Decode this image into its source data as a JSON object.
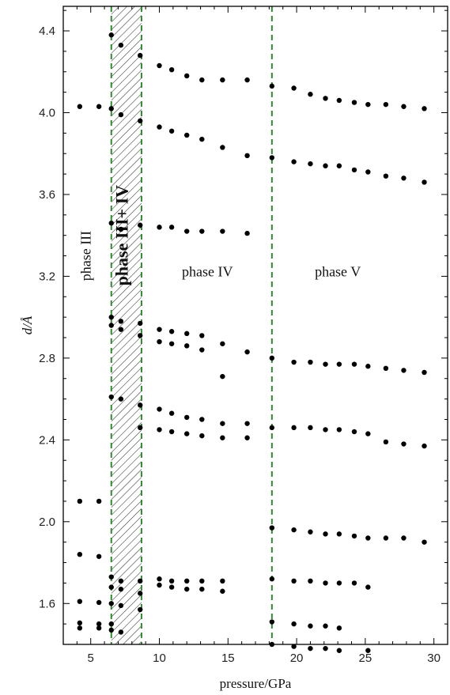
{
  "chart_data": {
    "type": "scatter",
    "title": "",
    "xlabel": "pressure/GPa",
    "ylabel": "d/Å",
    "xlim": [
      3,
      31
    ],
    "ylim": [
      1.4,
      4.52
    ],
    "x_ticks": [
      5,
      10,
      15,
      20,
      25,
      30
    ],
    "y_ticks": [
      1.6,
      2.0,
      2.4,
      2.8,
      3.2,
      3.6,
      4.0,
      4.4
    ],
    "x_tick_labels": [
      "5",
      "10",
      "15",
      "20",
      "25",
      "30"
    ],
    "y_tick_labels": [
      "1.6",
      "2.0",
      "2.4",
      "2.8",
      "3.2",
      "3.6",
      "4.0",
      "4.4"
    ],
    "grid": false,
    "colors": {
      "points": "#000000",
      "boundary": "#2e8b2e",
      "hatch": "#333333"
    },
    "regions": [
      {
        "label": "phase III",
        "x": 5.0,
        "y": 3.3,
        "rotated": true,
        "bold": false
      },
      {
        "label": "phase III+ IV",
        "x": 7.7,
        "y": 3.4,
        "rotated": true,
        "bold": true
      },
      {
        "label": "phase IV",
        "x": 13.5,
        "y": 3.2,
        "rotated": false,
        "bold": false
      },
      {
        "label": "phase V",
        "x": 23.0,
        "y": 3.2,
        "rotated": false,
        "bold": false
      }
    ],
    "boundaries": [
      6.5,
      8.7,
      18.2
    ],
    "hatched_region": [
      6.5,
      8.7
    ],
    "points": [
      [
        4.2,
        4.03
      ],
      [
        5.6,
        4.03
      ],
      [
        4.2,
        2.1
      ],
      [
        5.6,
        2.1
      ],
      [
        4.2,
        1.84
      ],
      [
        5.6,
        1.83
      ],
      [
        4.2,
        1.61
      ],
      [
        5.6,
        1.605
      ],
      [
        4.2,
        1.505
      ],
      [
        5.6,
        1.5
      ],
      [
        4.2,
        1.48
      ],
      [
        5.6,
        1.48
      ],
      [
        6.5,
        4.38
      ],
      [
        6.5,
        4.02
      ],
      [
        6.5,
        3.46
      ],
      [
        6.5,
        3.0
      ],
      [
        6.5,
        2.96
      ],
      [
        6.5,
        2.61
      ],
      [
        6.5,
        1.73
      ],
      [
        6.5,
        1.68
      ],
      [
        6.5,
        1.6
      ],
      [
        6.5,
        1.5
      ],
      [
        6.5,
        1.47
      ],
      [
        7.2,
        4.33
      ],
      [
        7.2,
        3.99
      ],
      [
        7.2,
        3.43
      ],
      [
        7.2,
        2.98
      ],
      [
        7.2,
        2.94
      ],
      [
        7.2,
        2.6
      ],
      [
        7.2,
        1.71
      ],
      [
        7.2,
        1.67
      ],
      [
        7.2,
        1.59
      ],
      [
        7.2,
        1.46
      ],
      [
        8.6,
        4.28
      ],
      [
        8.6,
        3.96
      ],
      [
        8.6,
        3.45
      ],
      [
        8.6,
        2.97
      ],
      [
        8.6,
        2.91
      ],
      [
        8.6,
        2.57
      ],
      [
        8.6,
        2.46
      ],
      [
        8.6,
        1.71
      ],
      [
        8.6,
        1.65
      ],
      [
        8.6,
        1.57
      ],
      [
        10.0,
        4.23
      ],
      [
        10.0,
        3.93
      ],
      [
        10.0,
        3.44
      ],
      [
        10.0,
        2.94
      ],
      [
        10.0,
        2.88
      ],
      [
        10.0,
        2.55
      ],
      [
        10.0,
        2.45
      ],
      [
        10.0,
        1.72
      ],
      [
        10.0,
        1.69
      ],
      [
        10.9,
        4.21
      ],
      [
        10.9,
        3.91
      ],
      [
        10.9,
        3.44
      ],
      [
        10.9,
        2.93
      ],
      [
        10.9,
        2.87
      ],
      [
        10.9,
        2.53
      ],
      [
        10.9,
        2.44
      ],
      [
        10.9,
        1.71
      ],
      [
        10.9,
        1.68
      ],
      [
        12.0,
        4.18
      ],
      [
        12.0,
        3.89
      ],
      [
        12.0,
        3.42
      ],
      [
        12.0,
        2.92
      ],
      [
        12.0,
        2.86
      ],
      [
        12.0,
        2.51
      ],
      [
        12.0,
        2.43
      ],
      [
        12.0,
        1.71
      ],
      [
        12.0,
        1.67
      ],
      [
        13.1,
        4.16
      ],
      [
        13.1,
        3.87
      ],
      [
        13.1,
        3.42
      ],
      [
        13.1,
        2.91
      ],
      [
        13.1,
        2.84
      ],
      [
        13.1,
        2.5
      ],
      [
        13.1,
        2.42
      ],
      [
        13.1,
        1.71
      ],
      [
        13.1,
        1.67
      ],
      [
        14.6,
        4.16
      ],
      [
        14.6,
        3.83
      ],
      [
        14.6,
        3.42
      ],
      [
        14.6,
        2.87
      ],
      [
        14.6,
        2.71
      ],
      [
        14.6,
        2.48
      ],
      [
        14.6,
        2.41
      ],
      [
        14.6,
        1.71
      ],
      [
        14.6,
        1.66
      ],
      [
        16.4,
        4.16
      ],
      [
        16.4,
        3.79
      ],
      [
        16.4,
        3.41
      ],
      [
        16.4,
        2.83
      ],
      [
        16.4,
        2.48
      ],
      [
        16.4,
        2.41
      ],
      [
        18.2,
        4.13
      ],
      [
        18.2,
        3.78
      ],
      [
        18.2,
        2.8
      ],
      [
        18.2,
        2.46
      ],
      [
        18.2,
        1.97
      ],
      [
        18.2,
        1.72
      ],
      [
        18.2,
        1.51
      ],
      [
        18.2,
        1.4
      ],
      [
        19.8,
        4.12
      ],
      [
        19.8,
        3.76
      ],
      [
        19.8,
        2.78
      ],
      [
        19.8,
        2.46
      ],
      [
        19.8,
        1.96
      ],
      [
        19.8,
        1.71
      ],
      [
        19.8,
        1.5
      ],
      [
        19.8,
        1.39
      ],
      [
        21.0,
        4.09
      ],
      [
        21.0,
        3.75
      ],
      [
        21.0,
        2.78
      ],
      [
        21.0,
        2.46
      ],
      [
        21.0,
        1.95
      ],
      [
        21.0,
        1.71
      ],
      [
        21.0,
        1.49
      ],
      [
        21.0,
        1.38
      ],
      [
        22.1,
        4.07
      ],
      [
        22.1,
        3.74
      ],
      [
        22.1,
        2.77
      ],
      [
        22.1,
        2.45
      ],
      [
        22.1,
        1.94
      ],
      [
        22.1,
        1.7
      ],
      [
        22.1,
        1.49
      ],
      [
        22.1,
        1.38
      ],
      [
        23.1,
        4.06
      ],
      [
        23.1,
        3.74
      ],
      [
        23.1,
        2.77
      ],
      [
        23.1,
        2.45
      ],
      [
        23.1,
        1.94
      ],
      [
        23.1,
        1.7
      ],
      [
        23.1,
        1.48
      ],
      [
        23.1,
        1.37
      ],
      [
        24.2,
        4.05
      ],
      [
        24.2,
        3.72
      ],
      [
        24.2,
        2.77
      ],
      [
        24.2,
        2.44
      ],
      [
        24.2,
        1.93
      ],
      [
        24.2,
        1.7
      ],
      [
        25.2,
        4.04
      ],
      [
        25.2,
        3.71
      ],
      [
        25.2,
        2.76
      ],
      [
        25.2,
        2.43
      ],
      [
        25.2,
        1.92
      ],
      [
        25.2,
        1.68
      ],
      [
        25.2,
        1.37
      ],
      [
        26.5,
        4.04
      ],
      [
        26.5,
        3.69
      ],
      [
        26.5,
        2.75
      ],
      [
        26.5,
        2.39
      ],
      [
        26.5,
        1.92
      ],
      [
        27.8,
        4.03
      ],
      [
        27.8,
        3.68
      ],
      [
        27.8,
        2.74
      ],
      [
        27.8,
        2.38
      ],
      [
        27.8,
        1.92
      ],
      [
        29.3,
        4.02
      ],
      [
        29.3,
        3.66
      ],
      [
        29.3,
        2.73
      ],
      [
        29.3,
        2.37
      ],
      [
        29.3,
        1.9
      ]
    ]
  }
}
